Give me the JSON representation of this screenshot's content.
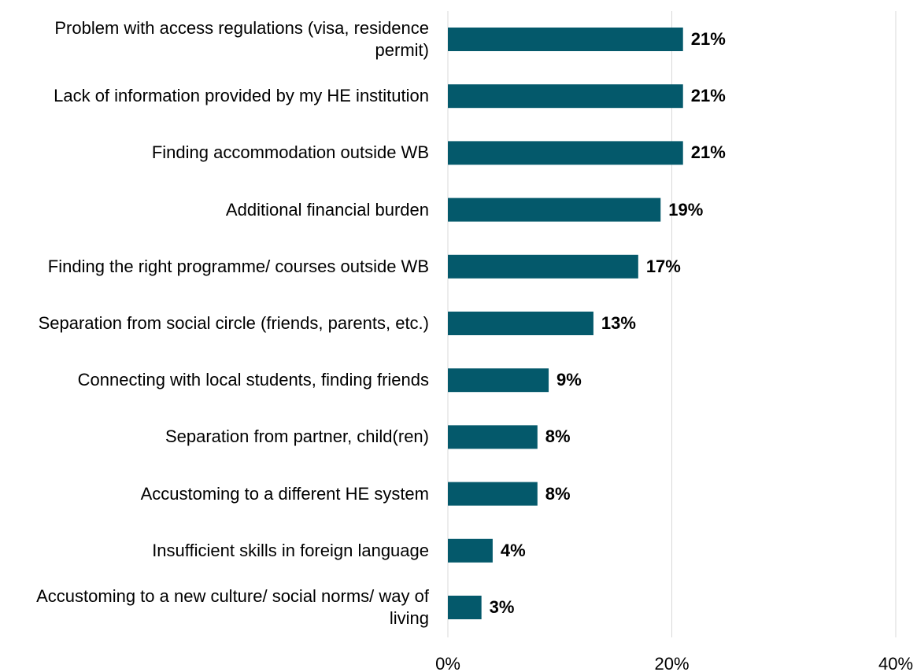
{
  "chart_data": {
    "type": "bar",
    "orientation": "horizontal",
    "categories": [
      "Problem with access regulations (visa, residence permit)",
      "Lack of information provided by my HE institution",
      "Finding accommodation outside WB",
      "Additional financial burden",
      "Finding the right programme/ courses outside WB",
      "Separation from social circle (friends, parents, etc.)",
      "Connecting with local students, finding friends",
      "Separation from partner, child(ren)",
      "Accustoming to a different HE system",
      "Insufficient skills in foreign language",
      "Accustoming to a new culture/ social norms/ way of living"
    ],
    "values": [
      21,
      21,
      21,
      19,
      17,
      13,
      9,
      8,
      8,
      4,
      3
    ],
    "value_labels": [
      "21%",
      "21%",
      "21%",
      "19%",
      "17%",
      "13%",
      "9%",
      "8%",
      "8%",
      "4%",
      "3%"
    ],
    "xlim": [
      0,
      40
    ],
    "x_ticks": [
      0,
      20,
      40
    ],
    "x_tick_labels": [
      "0%",
      "20%",
      "40%"
    ],
    "grid": true,
    "bar_color": "#04596b",
    "grid_color": "#d9d9d9"
  }
}
